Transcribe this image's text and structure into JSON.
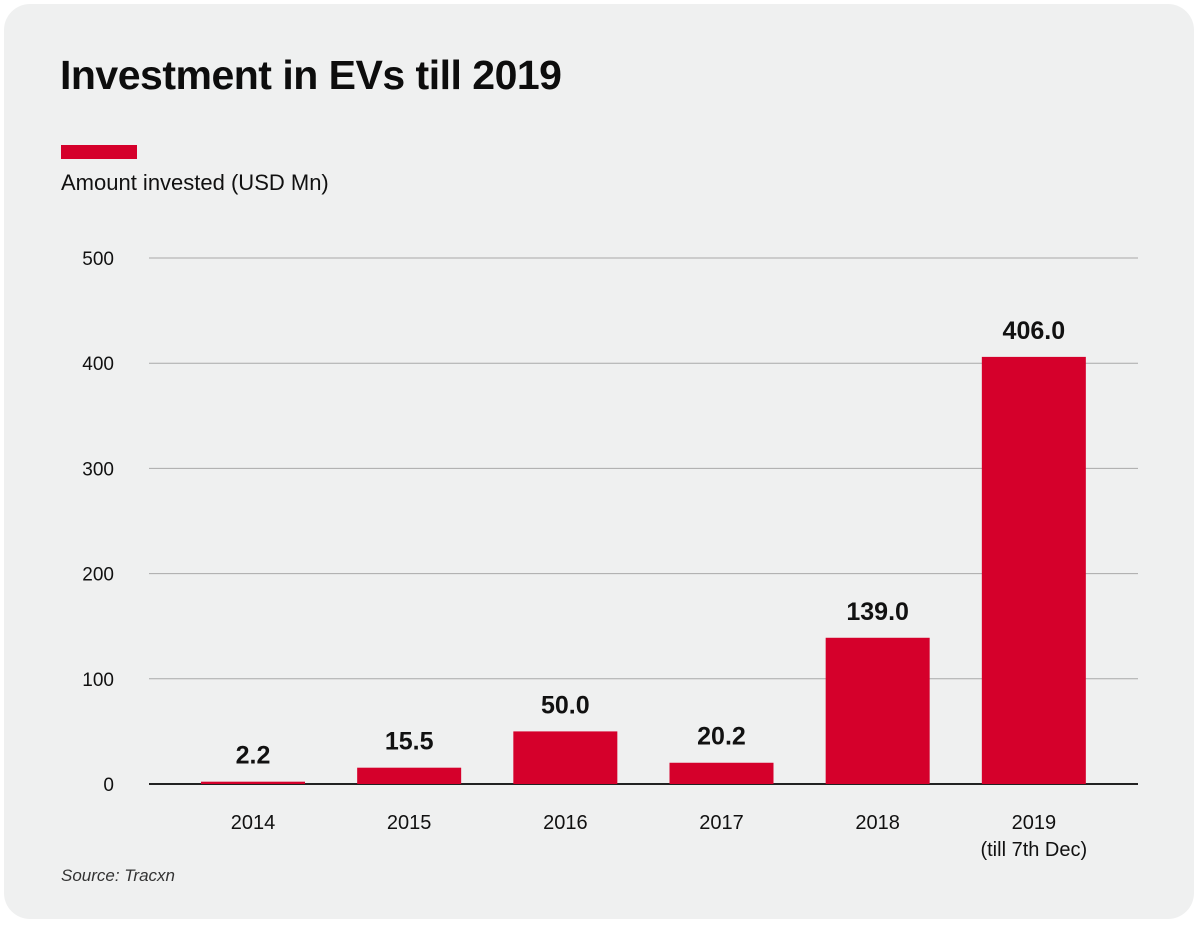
{
  "chart_data": {
    "type": "bar",
    "title": "Investment in EVs till 2019",
    "categories": [
      "2014",
      "2015",
      "2016",
      "2017",
      "2018",
      "2019"
    ],
    "category_sublabels": [
      "",
      "",
      "",
      "",
      "",
      "(till 7th Dec)"
    ],
    "values": [
      2.2,
      15.5,
      50.0,
      20.2,
      139.0,
      406.0
    ],
    "value_labels": [
      "2.2",
      "15.5",
      "50.0",
      "20.2",
      "139.0",
      "406.0"
    ],
    "series_name": "Amount invested (USD Mn)",
    "ylim": [
      0,
      500
    ],
    "yticks": [
      0,
      100,
      200,
      300,
      400,
      500
    ],
    "grid": true,
    "legend_position": "top-left",
    "source": "Source: Tracxn",
    "bar_color": "#d5002b"
  }
}
